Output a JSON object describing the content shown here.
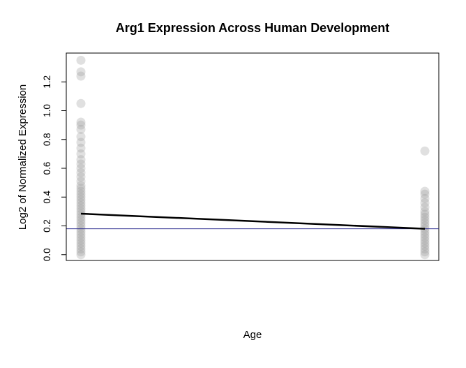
{
  "chart_data": {
    "type": "scatter",
    "title": "Arg1 Expression Across Human Development",
    "xlabel": "Age",
    "ylabel": "Log2 of Normalized Expression",
    "ylim": [
      -0.04,
      1.4
    ],
    "yticks": [
      0.0,
      0.2,
      0.4,
      0.6,
      0.8,
      1.0,
      1.2
    ],
    "ytick_labels": [
      "0.0",
      "0.2",
      "0.4",
      "0.6",
      "0.8",
      "1.0",
      "1.2"
    ],
    "grid": false,
    "legend": "none",
    "groups": [
      {
        "name": "",
        "x_position": "left",
        "values": [
          1.35,
          1.27,
          1.24,
          1.05,
          0.92,
          0.9,
          0.87,
          0.82,
          0.78,
          0.74,
          0.7,
          0.66,
          0.63,
          0.6,
          0.57,
          0.54,
          0.51,
          0.48,
          0.46,
          0.44,
          0.42,
          0.4,
          0.38,
          0.36,
          0.34,
          0.32,
          0.3,
          0.28,
          0.26,
          0.24,
          0.22,
          0.2,
          0.18,
          0.16,
          0.14,
          0.12,
          0.1,
          0.08,
          0.06,
          0.04,
          0.02,
          0.0
        ]
      },
      {
        "name": "",
        "x_position": "right",
        "values": [
          0.72,
          0.44,
          0.42,
          0.39,
          0.36,
          0.33,
          0.3,
          0.28,
          0.26,
          0.24,
          0.22,
          0.2,
          0.18,
          0.16,
          0.14,
          0.12,
          0.1,
          0.08,
          0.06,
          0.04,
          0.02,
          0.0
        ]
      }
    ],
    "trend_line": {
      "color": "#000000",
      "from": 0.285,
      "to": 0.18
    },
    "reference_line": {
      "color": "#2b2b8f",
      "value": 0.18
    },
    "point_color": "#999999"
  }
}
